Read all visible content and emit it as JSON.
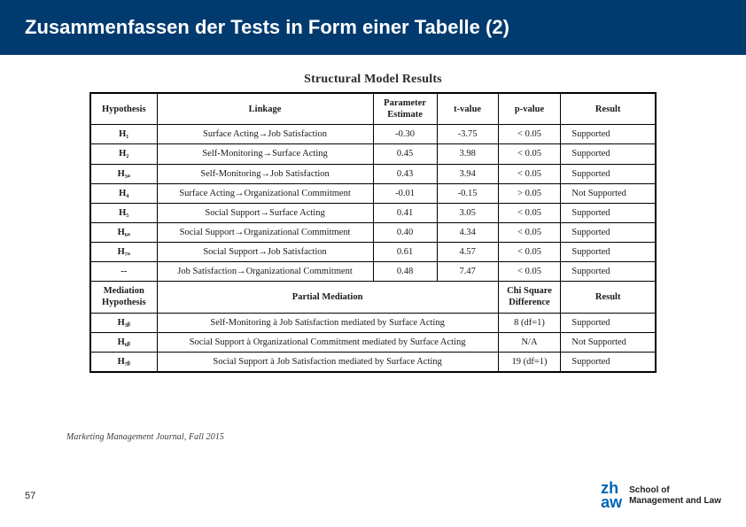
{
  "header": {
    "title": "Zusammenfassen der Tests in Form einer Tabelle (2)"
  },
  "table": {
    "caption": "Structural Model Results",
    "headers": {
      "hypothesis": "Hypothesis",
      "linkage": "Linkage",
      "parameter_estimate": "Parameter Estimate",
      "t_value": "t-value",
      "p_value": "p-value",
      "result": "Result"
    },
    "rows": [
      {
        "hyp": "H₁",
        "linkage": "Surface Acting→Job Satisfaction",
        "pe": "-0.30",
        "tv": "-3.75",
        "pv": "< 0.05",
        "result": "Supported"
      },
      {
        "hyp": "H₂",
        "linkage": "Self-Monitoring→Surface Acting",
        "pe": "0.45",
        "tv": "3.98",
        "pv": "< 0.05",
        "result": "Supported"
      },
      {
        "hyp": "H₃ₐ",
        "linkage": "Self-Monitoring→Job Satisfaction",
        "pe": "0.43",
        "tv": "3.94",
        "pv": "< 0.05",
        "result": "Supported"
      },
      {
        "hyp": "H₄",
        "linkage": "Surface Acting→Organizational Commitment",
        "pe": "-0.01",
        "tv": "-0.15",
        "pv": "> 0.05",
        "result": "Not Supported"
      },
      {
        "hyp": "H₅",
        "linkage": "Social Support→Surface Acting",
        "pe": "0.41",
        "tv": "3.05",
        "pv": "< 0.05",
        "result": "Supported"
      },
      {
        "hyp": "H₆ₐ",
        "linkage": "Social Support→Organizational Commitment",
        "pe": "0.40",
        "tv": "4.34",
        "pv": "< 0.05",
        "result": "Supported"
      },
      {
        "hyp": "H₇ₐ",
        "linkage": "Social Support→Job Satisfaction",
        "pe": "0.61",
        "tv": "4.57",
        "pv": "< 0.05",
        "result": "Supported"
      },
      {
        "hyp": "--",
        "linkage": "Job Satisfaction→Organizational Commitment",
        "pe": "0.48",
        "tv": "7.47",
        "pv": "< 0.05",
        "result": "Supported"
      }
    ],
    "mediation_header": {
      "hypothesis": "Mediation Hypothesis",
      "middle": "Partial Mediation",
      "chi": "Chi Square Difference",
      "result": "Result"
    },
    "mediation_rows": [
      {
        "hyp": "H₃ᵦ",
        "linkage": "Self-Monitoring à Job Satisfaction mediated by Surface Acting",
        "chi": "8 (df=1)",
        "result": "Supported"
      },
      {
        "hyp": "H₆ᵦ",
        "linkage": "Social Support à Organizational Commitment mediated by Surface Acting",
        "chi": "N/A",
        "result": "Not Supported"
      },
      {
        "hyp": "H₇ᵦ",
        "linkage": "Social Support à Job Satisfaction mediated by Surface Acting",
        "chi": "19 (df=1)",
        "result": "Supported"
      }
    ]
  },
  "cut_caption": "Marketing Management Journal, Fall 2015",
  "footer": {
    "page": "57",
    "logo": {
      "l1": "zh",
      "l2": "aw",
      "t1": "School of",
      "t2": "Management and Law"
    }
  }
}
